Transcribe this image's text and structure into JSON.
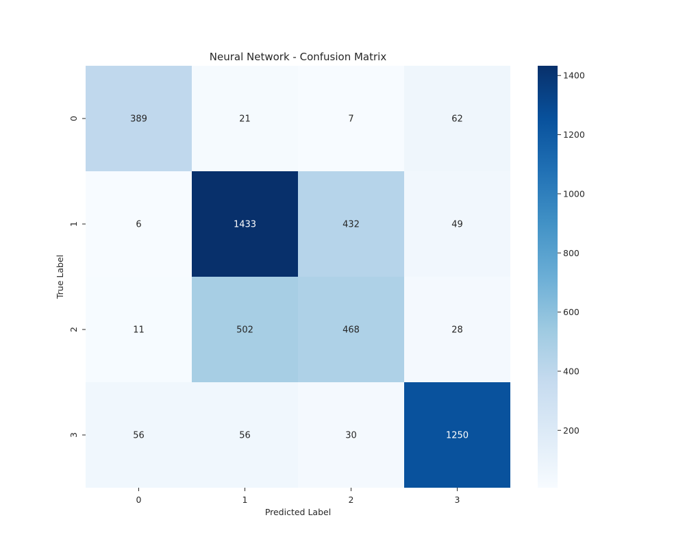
{
  "chart_data": {
    "type": "heatmap",
    "title": "Neural Network - Confusion Matrix",
    "xlabel": "Predicted Label",
    "ylabel": "True Label",
    "x_categories": [
      "0",
      "1",
      "2",
      "3"
    ],
    "y_categories": [
      "0",
      "1",
      "2",
      "3"
    ],
    "values": [
      [
        389,
        21,
        7,
        62
      ],
      [
        6,
        1433,
        432,
        49
      ],
      [
        11,
        502,
        468,
        28
      ],
      [
        56,
        56,
        30,
        1250
      ]
    ],
    "colormap": "Blues",
    "colorbar": {
      "range": [
        6,
        1433
      ],
      "ticks": [
        200,
        400,
        600,
        800,
        1000,
        1200,
        1400
      ],
      "tick_labels": [
        "200",
        "400",
        "600",
        "800",
        "1000",
        "1200",
        "1400"
      ]
    },
    "grid": false,
    "legend": "colorbar-right"
  }
}
